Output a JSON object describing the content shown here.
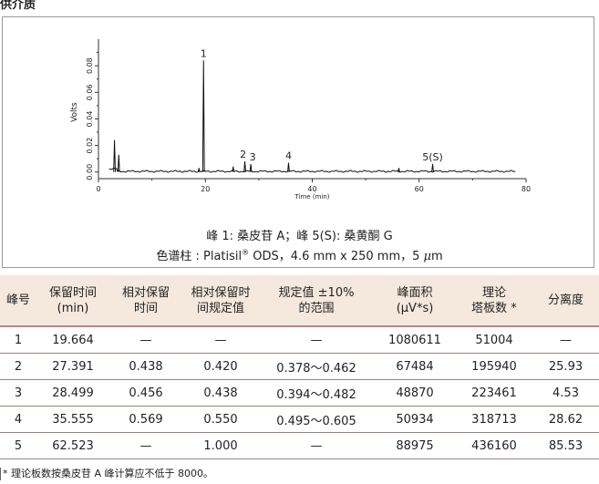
{
  "section_title": "供介质",
  "chart_data": {
    "type": "line",
    "title": "",
    "xlabel": "Time (min)",
    "ylabel": "Volts",
    "xlim": [
      0,
      80
    ],
    "ylim": [
      -0.005,
      0.1
    ],
    "x_ticks": [
      "0",
      "20",
      "40",
      "60",
      "80"
    ],
    "y_ticks": [
      "0.00",
      "0.02",
      "0.04",
      "0.06",
      "0.08"
    ],
    "peaks": [
      {
        "label": "",
        "time": 3.0,
        "height": 0.024
      },
      {
        "label": "",
        "time": 3.8,
        "height": 0.013
      },
      {
        "label": "",
        "time": 18.8,
        "height": 0.003
      },
      {
        "label": "1",
        "time": 19.66,
        "height": 0.084
      },
      {
        "label": "",
        "time": 25.2,
        "height": 0.004
      },
      {
        "label": "2",
        "time": 27.39,
        "height": 0.008
      },
      {
        "label": "3",
        "time": 28.5,
        "height": 0.006
      },
      {
        "label": "4",
        "time": 35.56,
        "height": 0.007
      },
      {
        "label": "",
        "time": 56.2,
        "height": 0.003
      },
      {
        "label": "5(S)",
        "time": 62.52,
        "height": 0.006
      }
    ]
  },
  "captions": {
    "line1": "峰 1: 桑皮苷 A；峰 5(S): 桑黄酮 G",
    "line2_prefix": "色谱柱 : Platisil",
    "line2_sup": "®",
    "line2_suffix": " ODS，4.6 mm x 250 mm，5 ",
    "line2_unit_mu": "μ",
    "line2_unit_m": "m"
  },
  "table": {
    "headers": [
      [
        "峰号"
      ],
      [
        "保留时间",
        "(min)"
      ],
      [
        "相对保留",
        "时间"
      ],
      [
        "相对保留时",
        "间规定值"
      ],
      [
        "规定值 ±10%",
        "的范围"
      ],
      [
        "峰面积",
        "(μV*s)"
      ],
      [
        "理论",
        "塔板数 *"
      ],
      [
        "分离度"
      ]
    ],
    "rows": [
      [
        "1",
        "19.664",
        "—",
        "—",
        "—",
        "1080611",
        "51004",
        "—"
      ],
      [
        "2",
        "27.391",
        "0.438",
        "0.420",
        "0.378～0.462",
        "67484",
        "195940",
        "25.93"
      ],
      [
        "3",
        "28.499",
        "0.456",
        "0.438",
        "0.394～0.482",
        "48870",
        "223461",
        "4.53"
      ],
      [
        "4",
        "35.555",
        "0.569",
        "0.550",
        "0.495～0.605",
        "50934",
        "318713",
        "28.62"
      ],
      [
        "5",
        "62.523",
        "—",
        "1.000",
        "—",
        "88975",
        "436160",
        "85.53"
      ]
    ]
  },
  "footnote": "* 理论板数按桑皮苷 A 峰计算应不低于 8000。",
  "colors": {
    "header_bg": "#f5e8dc",
    "rule": "#b08f88",
    "trace": "#111111"
  }
}
